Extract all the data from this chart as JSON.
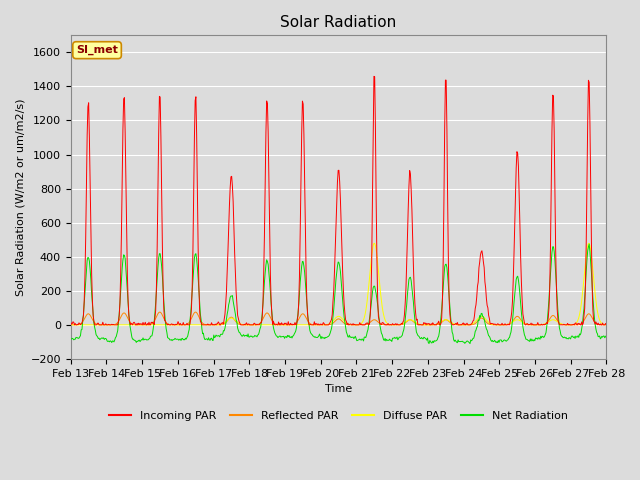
{
  "title": "Solar Radiation",
  "xlabel": "Time",
  "ylabel": "Solar Radiation (W/m2 or um/m2/s)",
  "ylim": [
    -200,
    1700
  ],
  "yticks": [
    -200,
    0,
    200,
    400,
    600,
    800,
    1000,
    1200,
    1400,
    1600
  ],
  "site_label": "SI_met",
  "axes_bg": "#dcdcdc",
  "fig_bg": "#dcdcdc",
  "grid_color": "#ffffff",
  "colors": {
    "incoming": "#ff0000",
    "reflected": "#ff8800",
    "diffuse": "#ffff00",
    "net": "#00dd00"
  },
  "legend_labels": [
    "Incoming PAR",
    "Reflected PAR",
    "Diffuse PAR",
    "Net Radiation"
  ],
  "title_fontsize": 11,
  "label_fontsize": 8,
  "tick_fontsize": 8
}
